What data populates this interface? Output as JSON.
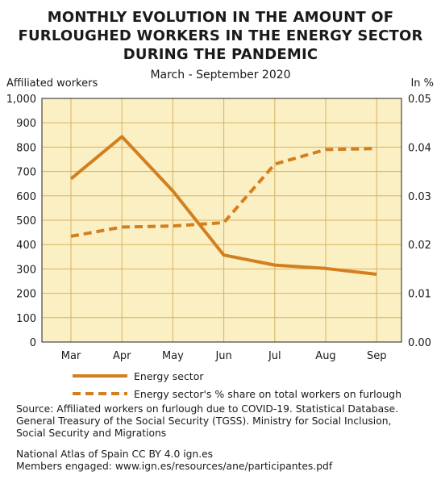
{
  "header": {
    "title_lines": [
      "MONTHLY EVOLUTION IN THE AMOUNT OF",
      "FURLOUGHED WORKERS IN THE ENERGY SECTOR",
      "DURING THE PANDEMIC"
    ],
    "subtitle": "March - September 2020"
  },
  "chart_data": {
    "type": "line",
    "title": "MONTHLY EVOLUTION IN THE AMOUNT OF FURLOUGHED WORKERS IN THE ENERGY SECTOR DURING THE PANDEMIC",
    "subtitle": "March - September 2020",
    "categories": [
      "Mar",
      "Apr",
      "May",
      "Jun",
      "Jul",
      "Aug",
      "Sep"
    ],
    "left_axis": {
      "label": "Affiliated workers",
      "range": [
        0,
        1000
      ],
      "ticks": [
        "0",
        "100",
        "200",
        "300",
        "400",
        "500",
        "600",
        "700",
        "800",
        "900",
        "1,000"
      ]
    },
    "right_axis": {
      "label": "In %",
      "range": [
        0,
        0.05
      ],
      "ticks": [
        "0.00",
        "0.01",
        "0.02",
        "0.03",
        "0.04",
        "0.05"
      ]
    },
    "series": [
      {
        "name": "Energy sector",
        "axis": "left",
        "style": "solid",
        "values": [
          670,
          843,
          620,
          357,
          316,
          302,
          278
        ]
      },
      {
        "name": "Energy sector's % share on total workers on furlough",
        "axis": "right",
        "style": "dashed",
        "values": [
          0.0217,
          0.0236,
          0.0238,
          0.0245,
          0.0365,
          0.0395,
          0.0397
        ]
      }
    ],
    "grid": true,
    "legend_position": "bottom",
    "colors": {
      "line": "#d2801f",
      "plot_bg": "#fbefc4",
      "grid": "#d9b25e"
    }
  },
  "footer": {
    "source_lines": [
      "Source: Affiliated workers on furlough due to COVID-19. Statistical Database.",
      "General Treasury of the Social Security (TGSS). Ministry for Social Inclusion,",
      "Social Security and Migrations"
    ],
    "credit_lines": [
      "National Atlas of Spain CC BY 4.0 ign.es",
      "Members engaged: www.ign.es/resources/ane/participantes.pdf"
    ]
  }
}
